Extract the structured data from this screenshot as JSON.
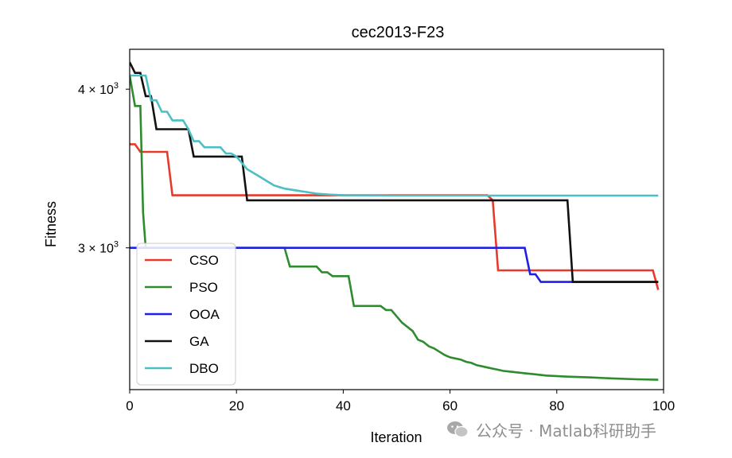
{
  "chart_data": {
    "type": "line",
    "title": "cec2013-F23",
    "xlabel": "Iteration",
    "ylabel": "Fitness",
    "yscale": "log",
    "xlim": [
      0,
      100
    ],
    "ylim": [
      2320,
      4300
    ],
    "x_ticks": [
      0,
      20,
      40,
      60,
      80,
      100
    ],
    "y_ticks": [
      {
        "value": 4000,
        "label_base": "4 × 10",
        "label_exp": "3"
      },
      {
        "value": 3000,
        "label_base": "3 × 10",
        "label_exp": "3"
      }
    ],
    "legend_position": "lower-left",
    "series": [
      {
        "name": "CSO",
        "color": "#e8392b",
        "points": [
          [
            0,
            3620
          ],
          [
            1,
            3620
          ],
          [
            2,
            3570
          ],
          [
            7,
            3570
          ],
          [
            8,
            3300
          ],
          [
            9,
            3300
          ],
          [
            67,
            3300
          ],
          [
            68,
            3270
          ],
          [
            69,
            2880
          ],
          [
            70,
            2880
          ],
          [
            98,
            2880
          ],
          [
            99,
            2780
          ]
        ]
      },
      {
        "name": "PSO",
        "color": "#2e8b2e",
        "points": [
          [
            0,
            4100
          ],
          [
            1,
            3880
          ],
          [
            2,
            3880
          ],
          [
            2.5,
            3200
          ],
          [
            3,
            3000
          ],
          [
            29,
            3000
          ],
          [
            30,
            2900
          ],
          [
            35,
            2900
          ],
          [
            36,
            2870
          ],
          [
            37,
            2870
          ],
          [
            38,
            2850
          ],
          [
            41,
            2850
          ],
          [
            42,
            2700
          ],
          [
            47,
            2700
          ],
          [
            48,
            2680
          ],
          [
            49,
            2680
          ],
          [
            50,
            2650
          ],
          [
            51,
            2620
          ],
          [
            52,
            2600
          ],
          [
            53,
            2580
          ],
          [
            54,
            2540
          ],
          [
            55,
            2530
          ],
          [
            56,
            2510
          ],
          [
            57,
            2500
          ],
          [
            58,
            2485
          ],
          [
            59,
            2470
          ],
          [
            60,
            2460
          ],
          [
            61,
            2455
          ],
          [
            62,
            2450
          ],
          [
            63,
            2440
          ],
          [
            64,
            2435
          ],
          [
            65,
            2425
          ],
          [
            66,
            2420
          ],
          [
            67,
            2415
          ],
          [
            68,
            2410
          ],
          [
            69,
            2405
          ],
          [
            70,
            2400
          ],
          [
            72,
            2395
          ],
          [
            74,
            2390
          ],
          [
            76,
            2385
          ],
          [
            78,
            2380
          ],
          [
            82,
            2375
          ],
          [
            86,
            2372
          ],
          [
            90,
            2368
          ],
          [
            95,
            2364
          ],
          [
            99,
            2362
          ]
        ]
      },
      {
        "name": "OOA",
        "color": "#1f1fe6",
        "points": [
          [
            0,
            3000
          ],
          [
            74,
            3000
          ],
          [
            75,
            2860
          ],
          [
            76,
            2860
          ],
          [
            77,
            2820
          ],
          [
            99,
            2820
          ]
        ]
      },
      {
        "name": "GA",
        "color": "#111111",
        "points": [
          [
            0,
            4200
          ],
          [
            1,
            4120
          ],
          [
            2,
            4120
          ],
          [
            3,
            3950
          ],
          [
            4,
            3950
          ],
          [
            5,
            3720
          ],
          [
            11,
            3720
          ],
          [
            12,
            3540
          ],
          [
            21,
            3540
          ],
          [
            22,
            3270
          ],
          [
            82,
            3270
          ],
          [
            83,
            2820
          ],
          [
            99,
            2820
          ]
        ]
      },
      {
        "name": "DBO",
        "color": "#4bbfc4",
        "points": [
          [
            0,
            4100
          ],
          [
            3,
            4100
          ],
          [
            4,
            3920
          ],
          [
            5,
            3920
          ],
          [
            6,
            3840
          ],
          [
            7,
            3840
          ],
          [
            8,
            3780
          ],
          [
            10,
            3780
          ],
          [
            11,
            3720
          ],
          [
            12,
            3640
          ],
          [
            13,
            3640
          ],
          [
            14,
            3600
          ],
          [
            17,
            3600
          ],
          [
            18,
            3560
          ],
          [
            19,
            3560
          ],
          [
            20,
            3540
          ],
          [
            21,
            3500
          ],
          [
            22,
            3460
          ],
          [
            23,
            3440
          ],
          [
            24,
            3420
          ],
          [
            25,
            3400
          ],
          [
            26,
            3380
          ],
          [
            27,
            3360
          ],
          [
            29,
            3340
          ],
          [
            31,
            3330
          ],
          [
            33,
            3320
          ],
          [
            35,
            3310
          ],
          [
            37,
            3305
          ],
          [
            40,
            3300
          ],
          [
            50,
            3298
          ],
          [
            70,
            3298
          ],
          [
            99,
            3298
          ]
        ]
      }
    ]
  },
  "watermark": {
    "icon": "wechat-icon",
    "text": "公众号 · Matlab科研助手"
  }
}
